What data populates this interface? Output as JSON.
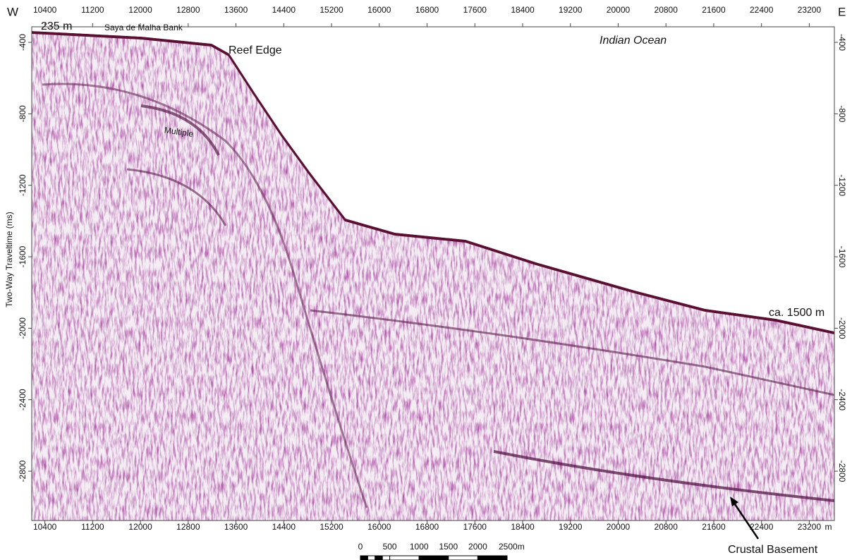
{
  "chart_data": {
    "type": "seismic",
    "xlim": [
      10180,
      23620
    ],
    "ylim": [
      -313,
      -3076
    ],
    "xticks": [
      10400,
      11200,
      12000,
      12800,
      13600,
      14400,
      15200,
      16000,
      16800,
      17600,
      18400,
      19200,
      20000,
      20800,
      21600,
      22400,
      23200
    ],
    "yticks": [
      -400,
      -800,
      -1200,
      -1600,
      -2000,
      -2400,
      -2800
    ],
    "x_unit": "m",
    "ylabel": "Two-Way Traveltime (ms)",
    "west": "W",
    "east": "E",
    "annotations": {
      "depth_shelf": "235 m",
      "bank": "Saya de Malha Bank",
      "reef": "Reef Edge",
      "ocean": "Indian Ocean",
      "multiple": "Multiple",
      "depth_deep": "ca. 1500 m",
      "basement": "Crustal Basement"
    },
    "scale_bar": {
      "ticks": [
        0,
        500,
        1000,
        1500,
        2000,
        {
          "value": 2500,
          "label": "2500m"
        }
      ]
    }
  }
}
